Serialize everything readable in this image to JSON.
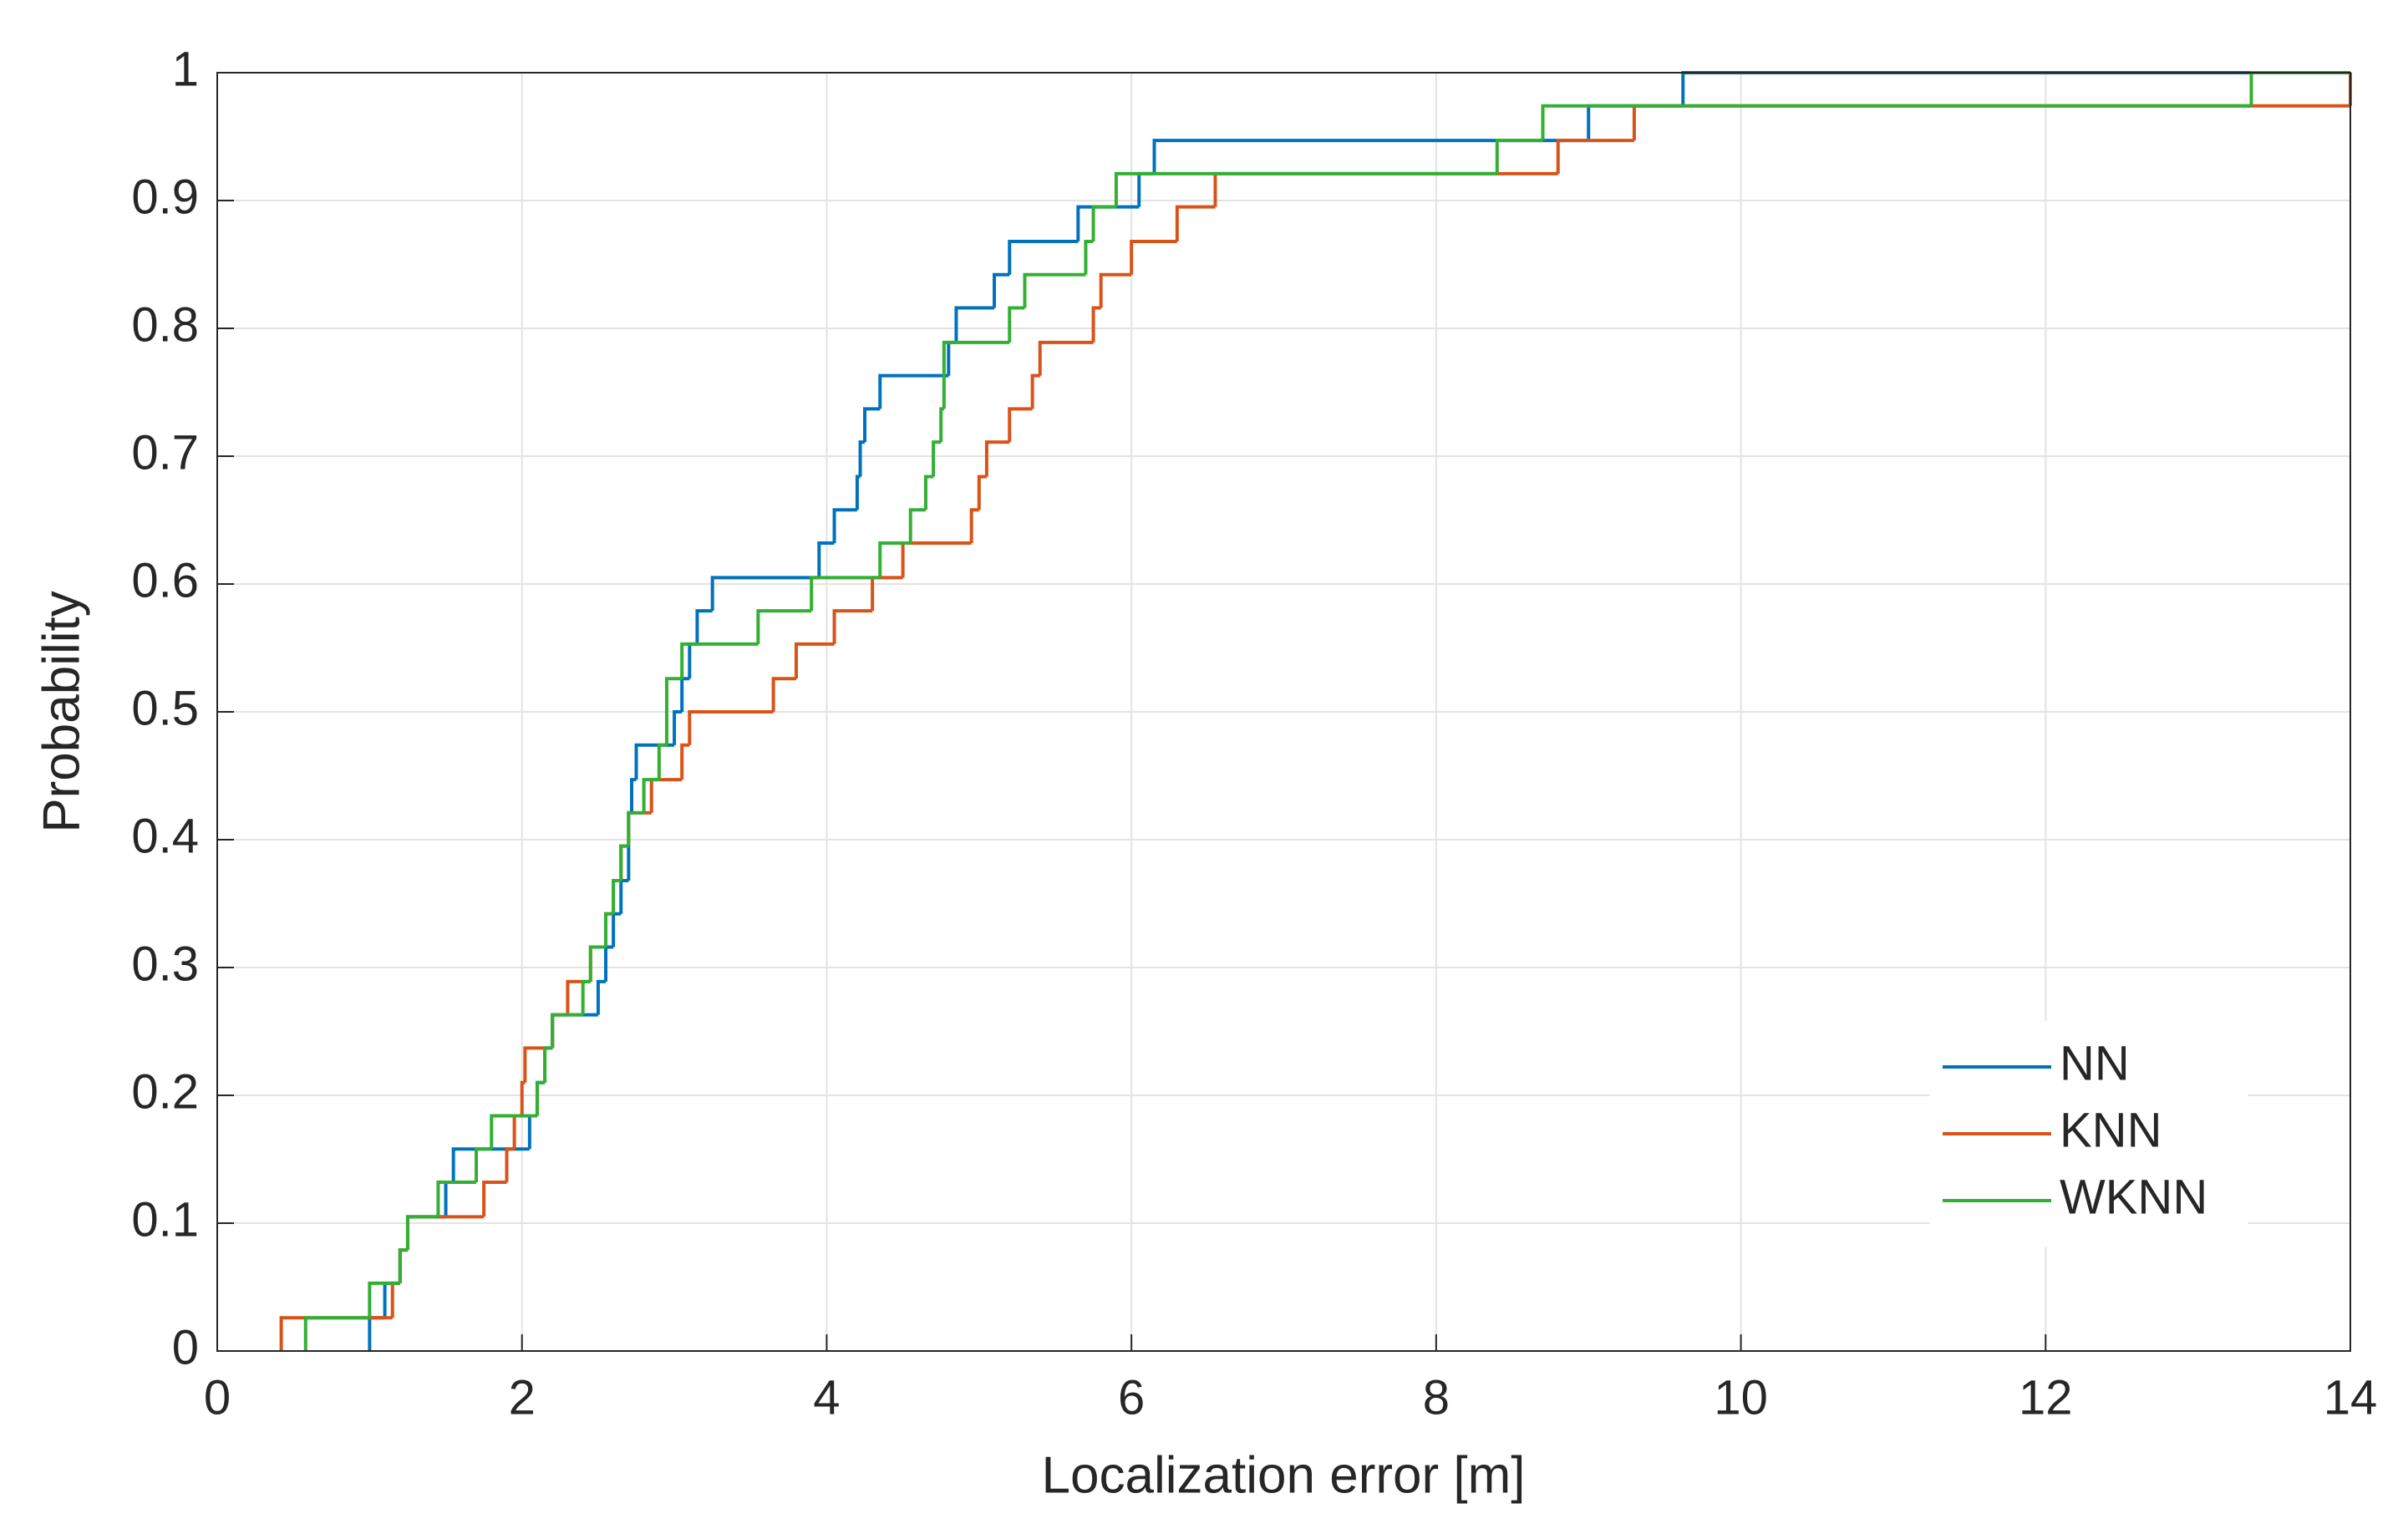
{
  "chart_data": {
    "type": "ecdf",
    "xlabel": "Localization error [m]",
    "ylabel": "Probability",
    "xlim": [
      0,
      14
    ],
    "ylim": [
      0,
      1
    ],
    "xticks": [
      0,
      2,
      4,
      6,
      8,
      10,
      12,
      14
    ],
    "yticks": [
      0,
      0.1,
      0.2,
      0.3,
      0.4,
      0.5,
      0.6,
      0.7,
      0.8,
      0.9,
      1
    ],
    "grid": true,
    "legend": "lower-right",
    "series": [
      {
        "name": "NN",
        "color": "#0072bd",
        "x": [
          1.0,
          1.1,
          1.2,
          1.25,
          1.5,
          1.55,
          2.05,
          2.1,
          2.15,
          2.2,
          2.5,
          2.55,
          2.6,
          2.65,
          2.7,
          2.72,
          2.75,
          3.0,
          3.05,
          3.1,
          3.15,
          3.25,
          3.95,
          4.05,
          4.2,
          4.22,
          4.25,
          4.35,
          4.8,
          4.85,
          5.1,
          5.2,
          5.65,
          6.05,
          6.15,
          9.0,
          9.62
        ],
        "values": [
          0.026,
          0.053,
          0.079,
          0.105,
          0.132,
          0.158,
          0.184,
          0.21,
          0.237,
          0.263,
          0.289,
          0.316,
          0.342,
          0.368,
          0.421,
          0.447,
          0.474,
          0.5,
          0.526,
          0.553,
          0.579,
          0.605,
          0.632,
          0.658,
          0.684,
          0.711,
          0.737,
          0.763,
          0.789,
          0.816,
          0.842,
          0.868,
          0.895,
          0.921,
          0.947,
          0.974,
          1.0
        ]
      },
      {
        "name": "KNN",
        "color": "#d95319",
        "x": [
          0.42,
          1.15,
          1.2,
          1.25,
          1.75,
          1.9,
          1.95,
          2.0,
          2.02,
          2.2,
          2.3,
          2.45,
          2.55,
          2.6,
          2.65,
          2.7,
          2.85,
          3.05,
          3.1,
          3.65,
          3.8,
          4.05,
          4.3,
          4.5,
          4.95,
          5.0,
          5.05,
          5.2,
          5.35,
          5.4,
          5.75,
          5.8,
          6.0,
          6.3,
          6.55,
          8.8,
          9.3,
          14.0
        ],
        "values": [
          0.026,
          0.053,
          0.079,
          0.105,
          0.132,
          0.158,
          0.184,
          0.21,
          0.237,
          0.263,
          0.289,
          0.316,
          0.342,
          0.368,
          0.395,
          0.421,
          0.447,
          0.474,
          0.5,
          0.526,
          0.553,
          0.579,
          0.605,
          0.632,
          0.658,
          0.684,
          0.711,
          0.737,
          0.763,
          0.789,
          0.816,
          0.842,
          0.868,
          0.895,
          0.921,
          0.947,
          0.974,
          1.0
        ]
      },
      {
        "name": "WKNN",
        "color": "#33b033",
        "x": [
          0.58,
          1.0,
          1.2,
          1.25,
          1.45,
          1.7,
          1.8,
          2.1,
          2.15,
          2.2,
          2.4,
          2.45,
          2.55,
          2.6,
          2.65,
          2.7,
          2.8,
          2.9,
          2.95,
          3.05,
          3.55,
          3.9,
          4.35,
          4.55,
          4.65,
          4.7,
          4.75,
          4.77,
          5.2,
          5.3,
          5.7,
          5.75,
          5.9,
          8.4,
          8.7,
          13.35
        ],
        "values": [
          0.026,
          0.053,
          0.079,
          0.105,
          0.132,
          0.158,
          0.184,
          0.21,
          0.237,
          0.263,
          0.289,
          0.316,
          0.342,
          0.368,
          0.395,
          0.421,
          0.447,
          0.474,
          0.526,
          0.553,
          0.579,
          0.605,
          0.632,
          0.658,
          0.684,
          0.711,
          0.737,
          0.789,
          0.816,
          0.842,
          0.868,
          0.895,
          0.921,
          0.947,
          0.974,
          1.0
        ]
      }
    ]
  }
}
